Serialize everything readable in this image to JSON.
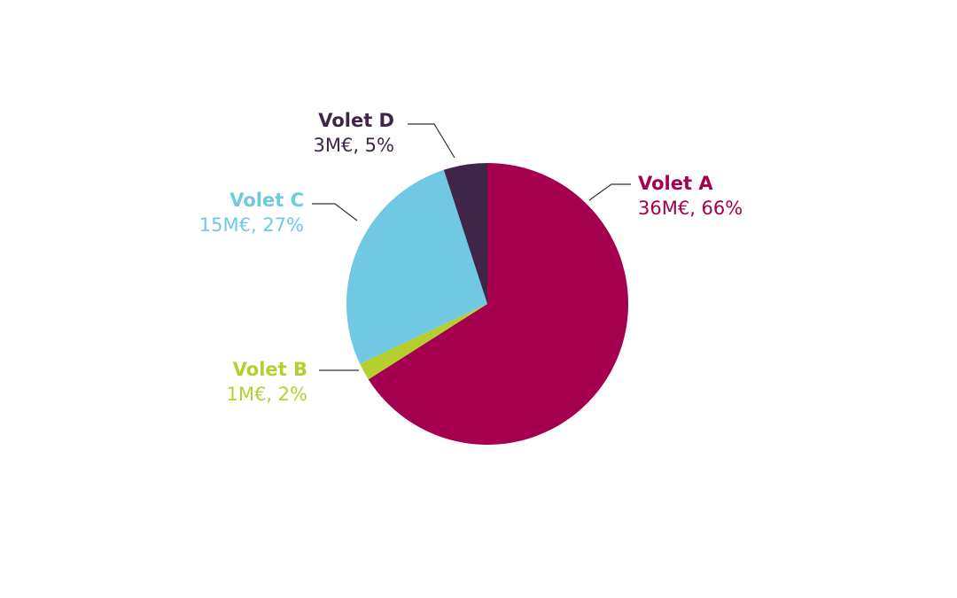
{
  "chart_data": {
    "type": "pie",
    "categories": [
      "Volet A",
      "Volet B",
      "Volet C",
      "Volet D"
    ],
    "values": [
      66,
      2,
      27,
      5
    ],
    "value_labels": [
      "36M€, 66%",
      "1M€, 2%",
      "15M€, 27%",
      "3M€, 5%"
    ],
    "colors": [
      "#a50050",
      "#b5cf2e",
      "#70c8e2",
      "#3e2549"
    ]
  }
}
